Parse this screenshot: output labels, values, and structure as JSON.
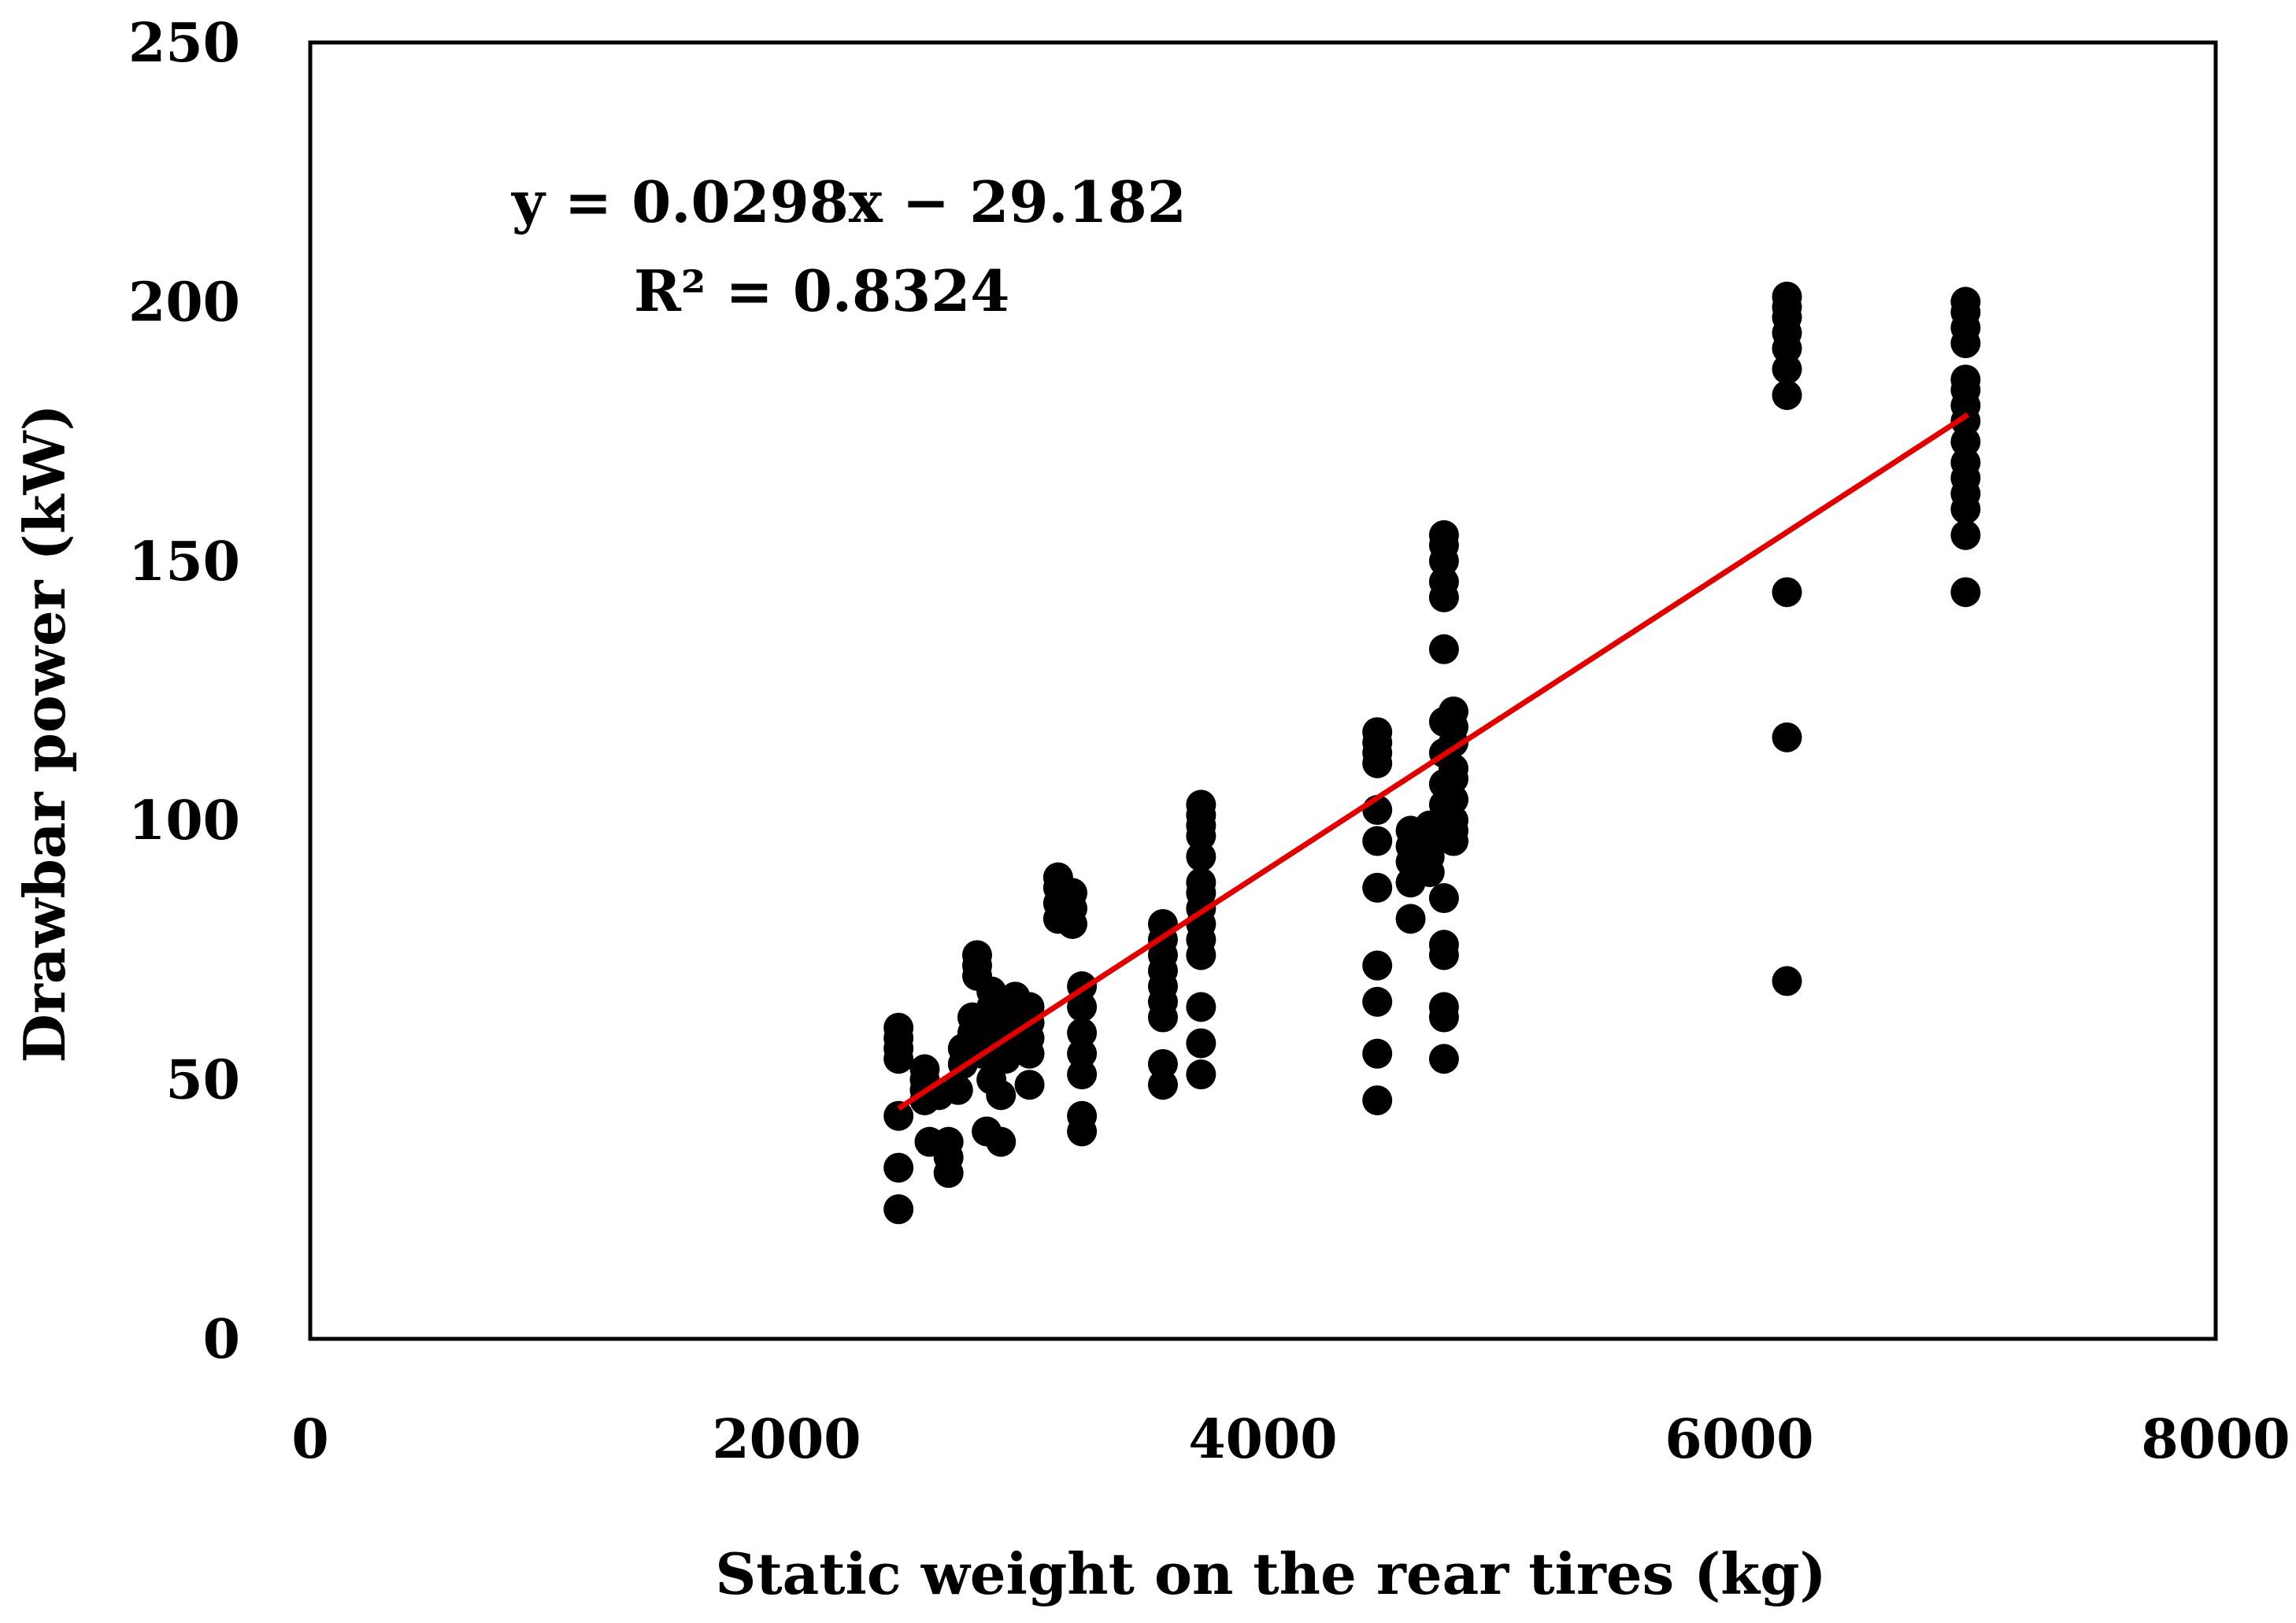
{
  "chart_data": {
    "type": "scatter",
    "title": "",
    "xlabel": "Static weight on the rear tires (kg)",
    "ylabel": "Drawbar power (kW)",
    "xlim": [
      0,
      8000
    ],
    "ylim": [
      0,
      250
    ],
    "xticks": [
      "0",
      "2000",
      "4000",
      "6000",
      "8000"
    ],
    "yticks": [
      "0",
      "50",
      "100",
      "150",
      "200",
      "250"
    ],
    "grid": false,
    "legend": "none",
    "marker_color": "#000000",
    "trendline_color": "#e00000",
    "annotations": {
      "equation": "y = 0.0298x − 29.182",
      "r_squared": "R² = 0.8324"
    },
    "trendline": {
      "slope": 0.0298,
      "intercept": -29.182,
      "x_range": [
        2470,
        6960
      ]
    },
    "points": [
      [
        2470,
        25
      ],
      [
        2470,
        33
      ],
      [
        2470,
        43
      ],
      [
        2470,
        54
      ],
      [
        2470,
        56
      ],
      [
        2470,
        58
      ],
      [
        2470,
        60
      ],
      [
        2580,
        46
      ],
      [
        2580,
        48
      ],
      [
        2580,
        50
      ],
      [
        2580,
        52
      ],
      [
        2600,
        38
      ],
      [
        2640,
        47
      ],
      [
        2680,
        32
      ],
      [
        2680,
        35
      ],
      [
        2680,
        38
      ],
      [
        2720,
        48
      ],
      [
        2740,
        53
      ],
      [
        2740,
        56
      ],
      [
        2780,
        59
      ],
      [
        2780,
        62
      ],
      [
        2800,
        70
      ],
      [
        2800,
        72
      ],
      [
        2800,
        74
      ],
      [
        2820,
        55
      ],
      [
        2840,
        40
      ],
      [
        2860,
        50
      ],
      [
        2860,
        57
      ],
      [
        2860,
        61
      ],
      [
        2860,
        64
      ],
      [
        2860,
        67
      ],
      [
        2900,
        38
      ],
      [
        2900,
        47
      ],
      [
        2920,
        54
      ],
      [
        2920,
        60
      ],
      [
        2920,
        65
      ],
      [
        2960,
        58
      ],
      [
        2960,
        62
      ],
      [
        2960,
        66
      ],
      [
        3020,
        49
      ],
      [
        3020,
        55
      ],
      [
        3020,
        58
      ],
      [
        3020,
        61
      ],
      [
        3020,
        64
      ],
      [
        3140,
        81
      ],
      [
        3140,
        84
      ],
      [
        3140,
        87
      ],
      [
        3140,
        89
      ],
      [
        3200,
        80
      ],
      [
        3200,
        83
      ],
      [
        3200,
        86
      ],
      [
        3240,
        40
      ],
      [
        3240,
        43
      ],
      [
        3240,
        51
      ],
      [
        3240,
        55
      ],
      [
        3240,
        59
      ],
      [
        3240,
        64
      ],
      [
        3240,
        68
      ],
      [
        3580,
        49
      ],
      [
        3580,
        53
      ],
      [
        3580,
        62
      ],
      [
        3580,
        65
      ],
      [
        3580,
        68
      ],
      [
        3580,
        71
      ],
      [
        3580,
        74
      ],
      [
        3580,
        77
      ],
      [
        3580,
        80
      ],
      [
        3740,
        51
      ],
      [
        3740,
        57
      ],
      [
        3740,
        64
      ],
      [
        3740,
        74
      ],
      [
        3740,
        77
      ],
      [
        3740,
        80
      ],
      [
        3740,
        83
      ],
      [
        3740,
        86
      ],
      [
        3740,
        88
      ],
      [
        3740,
        93
      ],
      [
        3740,
        97
      ],
      [
        3740,
        99
      ],
      [
        3740,
        101
      ],
      [
        3740,
        103
      ],
      [
        4480,
        46
      ],
      [
        4480,
        55
      ],
      [
        4480,
        65
      ],
      [
        4480,
        72
      ],
      [
        4480,
        87
      ],
      [
        4480,
        96
      ],
      [
        4480,
        102
      ],
      [
        4480,
        111
      ],
      [
        4480,
        113
      ],
      [
        4480,
        115
      ],
      [
        4480,
        117
      ],
      [
        4620,
        81
      ],
      [
        4620,
        88
      ],
      [
        4620,
        92
      ],
      [
        4620,
        95
      ],
      [
        4620,
        98
      ],
      [
        4700,
        90
      ],
      [
        4700,
        93
      ],
      [
        4700,
        96
      ],
      [
        4700,
        99
      ],
      [
        4760,
        54
      ],
      [
        4760,
        62
      ],
      [
        4760,
        64
      ],
      [
        4760,
        74
      ],
      [
        4760,
        76
      ],
      [
        4760,
        85
      ],
      [
        4760,
        97
      ],
      [
        4760,
        103
      ],
      [
        4760,
        107
      ],
      [
        4760,
        113
      ],
      [
        4760,
        119
      ],
      [
        4760,
        133
      ],
      [
        4760,
        143
      ],
      [
        4760,
        146
      ],
      [
        4760,
        150
      ],
      [
        4760,
        153
      ],
      [
        4760,
        155
      ],
      [
        4800,
        96
      ],
      [
        4800,
        98
      ],
      [
        4800,
        100
      ],
      [
        4800,
        104
      ],
      [
        4800,
        108
      ],
      [
        4800,
        110
      ],
      [
        4800,
        115
      ],
      [
        4800,
        118
      ],
      [
        4800,
        121
      ],
      [
        6200,
        69
      ],
      [
        6200,
        116
      ],
      [
        6200,
        144
      ],
      [
        6200,
        182
      ],
      [
        6200,
        187
      ],
      [
        6200,
        191
      ],
      [
        6200,
        194
      ],
      [
        6200,
        197
      ],
      [
        6200,
        199
      ],
      [
        6200,
        201
      ],
      [
        6950,
        144
      ],
      [
        6950,
        155
      ],
      [
        6950,
        160
      ],
      [
        6950,
        163
      ],
      [
        6950,
        166
      ],
      [
        6950,
        169
      ],
      [
        6950,
        173
      ],
      [
        6950,
        177
      ],
      [
        6950,
        180
      ],
      [
        6950,
        183
      ],
      [
        6950,
        185
      ],
      [
        6950,
        192
      ],
      [
        6950,
        195
      ],
      [
        6950,
        198
      ],
      [
        6950,
        200
      ]
    ]
  }
}
